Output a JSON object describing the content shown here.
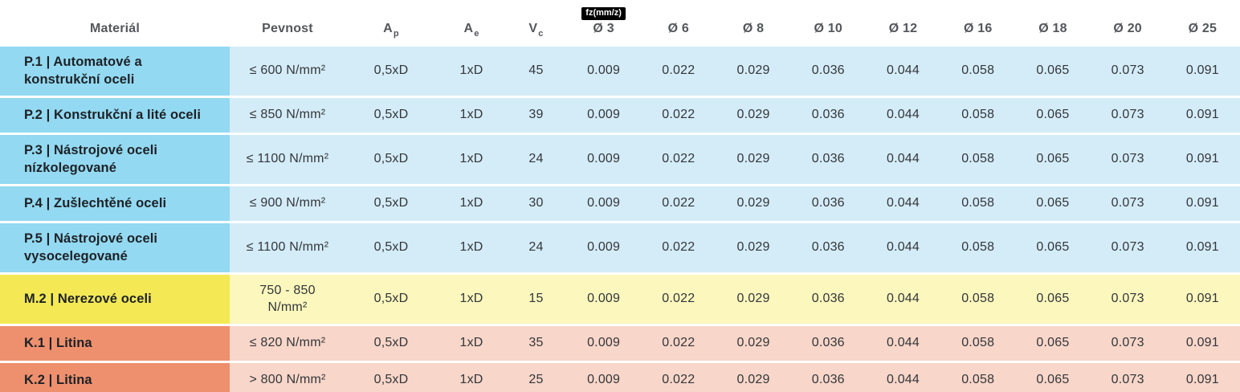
{
  "colors": {
    "p_material": "#93d9f1",
    "p_row": "#d4ecf8",
    "m_material": "#f4e955",
    "m_row": "#fbf7bd",
    "k_material": "#ee906e",
    "k_row": "#f8d6c9",
    "fz_box_bg": "#000000",
    "fz_box_text": "#ffffff",
    "header_text": "#54565b",
    "material_text": "#1d2126",
    "data_text": "#33363a"
  },
  "chart_data": {
    "type": "table",
    "headers": {
      "material": "Materiál",
      "pevnost": "Pevnost",
      "ap_base": "A",
      "ap_sub": "p",
      "ae_base": "A",
      "ae_sub": "e",
      "vc_base": "V",
      "vc_sub": "c",
      "fz_unit_label": "fz(mm/z)",
      "diameters": [
        "Ø 3",
        "Ø 6",
        "Ø 8",
        "Ø 10",
        "Ø 12",
        "Ø 16",
        "Ø 18",
        "Ø 20",
        "Ø 25"
      ]
    },
    "rows": [
      {
        "group": "P",
        "material": "P.1 | Automatové a konstrukční oceli",
        "pevnost": "≤ 600 N/mm²",
        "ap": "0,5xD",
        "ae": "1xD",
        "vc": "45",
        "fz": [
          "0.009",
          "0.022",
          "0.029",
          "0.036",
          "0.044",
          "0.058",
          "0.065",
          "0.073",
          "0.091"
        ]
      },
      {
        "group": "P",
        "material": "P.2 | Konstrukční a lité oceli",
        "pevnost": "≤ 850 N/mm²",
        "ap": "0,5xD",
        "ae": "1xD",
        "vc": "39",
        "fz": [
          "0.009",
          "0.022",
          "0.029",
          "0.036",
          "0.044",
          "0.058",
          "0.065",
          "0.073",
          "0.091"
        ]
      },
      {
        "group": "P",
        "material": "P.3 | Nástrojové oceli nízkolegované",
        "pevnost": "≤ 1100 N/mm²",
        "ap": "0,5xD",
        "ae": "1xD",
        "vc": "24",
        "fz": [
          "0.009",
          "0.022",
          "0.029",
          "0.036",
          "0.044",
          "0.058",
          "0.065",
          "0.073",
          "0.091"
        ]
      },
      {
        "group": "P",
        "material": "P.4 | Zušlechtěné oceli",
        "pevnost": "≤ 900 N/mm²",
        "ap": "0,5xD",
        "ae": "1xD",
        "vc": "30",
        "fz": [
          "0.009",
          "0.022",
          "0.029",
          "0.036",
          "0.044",
          "0.058",
          "0.065",
          "0.073",
          "0.091"
        ]
      },
      {
        "group": "P",
        "material": "P.5 | Nástrojové oceli vysocelegované",
        "pevnost": "≤ 1100 N/mm²",
        "ap": "0,5xD",
        "ae": "1xD",
        "vc": "24",
        "fz": [
          "0.009",
          "0.022",
          "0.029",
          "0.036",
          "0.044",
          "0.058",
          "0.065",
          "0.073",
          "0.091"
        ]
      },
      {
        "group": "M",
        "material": "M.2 | Nerezové oceli",
        "pevnost": "750 - 850\nN/mm²",
        "ap": "0,5xD",
        "ae": "1xD",
        "vc": "15",
        "fz": [
          "0.009",
          "0.022",
          "0.029",
          "0.036",
          "0.044",
          "0.058",
          "0.065",
          "0.073",
          "0.091"
        ]
      },
      {
        "group": "K",
        "material": "K.1 | Litina",
        "pevnost": "≤ 820 N/mm²",
        "ap": "0,5xD",
        "ae": "1xD",
        "vc": "35",
        "fz": [
          "0.009",
          "0.022",
          "0.029",
          "0.036",
          "0.044",
          "0.058",
          "0.065",
          "0.073",
          "0.091"
        ]
      },
      {
        "group": "K",
        "material": "K.2 | Litina",
        "pevnost": "> 800 N/mm²",
        "ap": "0,5xD",
        "ae": "1xD",
        "vc": "25",
        "fz": [
          "0.009",
          "0.022",
          "0.029",
          "0.036",
          "0.044",
          "0.058",
          "0.065",
          "0.073",
          "0.091"
        ]
      }
    ]
  }
}
